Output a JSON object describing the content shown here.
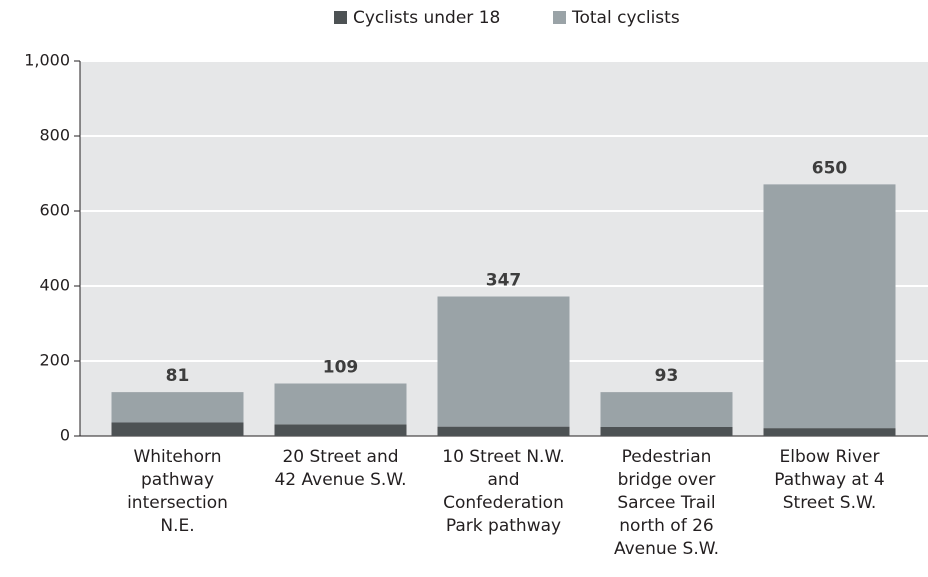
{
  "chart_data": {
    "type": "stacked_bar",
    "categories": [
      "Whitehorn pathway intersection N.E.",
      "20 Street and 42 Avenue S.W.",
      "10 Street N.W. and Confederation Park pathway",
      "Pedestrian bridge over Sarcee Trail north of 26 Avenue S.W.",
      "Elbow River Pathway at 4 Street S.W."
    ],
    "series": [
      {
        "name": "Cyclists under 18",
        "color": "#4d5254",
        "values": [
          36,
          31,
          25,
          24,
          21
        ]
      },
      {
        "name": "Total cyclists",
        "color": "#9aa3a7",
        "values": [
          81,
          109,
          347,
          93,
          650
        ]
      }
    ],
    "ylim": [
      0,
      1000
    ],
    "yticks": [
      0,
      200,
      400,
      600,
      800,
      {
        "value": 1000,
        "label": "1,000"
      }
    ],
    "grid": true,
    "legend": "top"
  }
}
